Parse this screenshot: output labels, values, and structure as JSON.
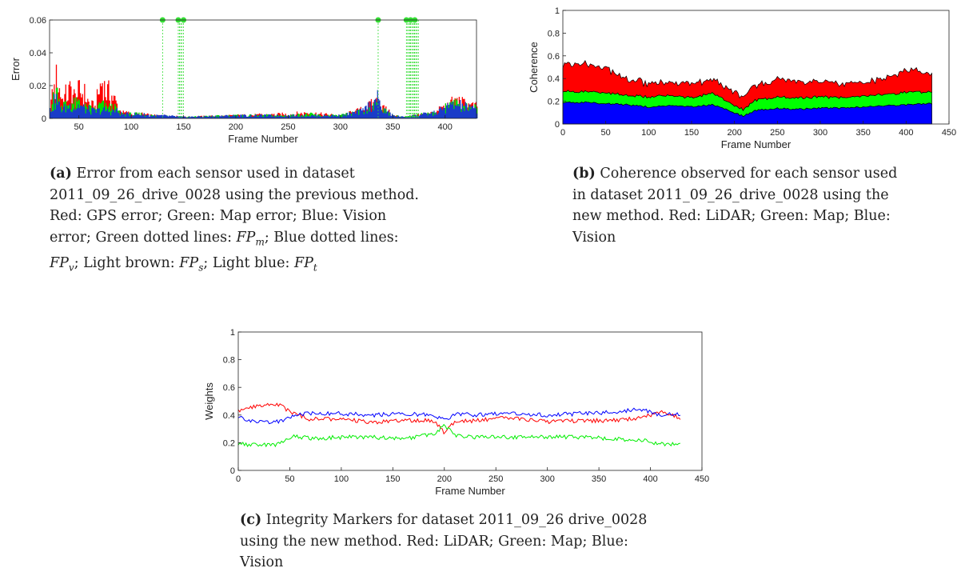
{
  "chart_data": [
    {
      "id": "a",
      "type": "area",
      "xlabel": "Frame Number",
      "ylabel": "Error",
      "xlim": [
        22,
        430
      ],
      "ylim": [
        0,
        0.06
      ],
      "xticks": [
        50,
        100,
        150,
        200,
        250,
        300,
        350,
        400
      ],
      "yticks": [
        0,
        0.02,
        0.04,
        0.06
      ],
      "ytick_labels": [
        "0",
        "0.02",
        "0.04",
        "0.06"
      ],
      "grid": false,
      "series": [
        {
          "color": "#ff0000",
          "x": [
            22,
            26,
            28,
            30,
            34,
            38,
            42,
            46,
            50,
            55,
            60,
            65,
            70,
            72,
            75,
            80,
            85,
            88,
            92,
            96,
            100,
            110,
            120,
            130,
            150,
            200,
            250,
            270,
            280,
            300,
            320,
            335,
            340,
            350,
            360,
            370,
            380,
            390,
            400,
            410,
            420,
            430
          ],
          "values": [
            0.01,
            0.02,
            0.028,
            0.024,
            0.014,
            0.018,
            0.021,
            0.015,
            0.02,
            0.018,
            0.01,
            0.008,
            0.024,
            0.028,
            0.02,
            0.018,
            0.012,
            0.006,
            0.004,
            0.004,
            0.003,
            0.003,
            0.002,
            0.002,
            0.001,
            0.002,
            0.003,
            0.004,
            0.003,
            0.002,
            0.006,
            0.012,
            0.008,
            0.002,
            0.001,
            0.002,
            0.003,
            0.004,
            0.009,
            0.012,
            0.01,
            0.008
          ]
        },
        {
          "color": "#00e000",
          "x": [
            22,
            26,
            28,
            30,
            34,
            38,
            42,
            46,
            50,
            55,
            60,
            65,
            70,
            72,
            75,
            80,
            85,
            88,
            92,
            96,
            100,
            110,
            120,
            130,
            150,
            200,
            250,
            270,
            280,
            300,
            320,
            335,
            340,
            350,
            360,
            370,
            380,
            390,
            400,
            410,
            420,
            430
          ],
          "values": [
            0.008,
            0.016,
            0.022,
            0.014,
            0.01,
            0.01,
            0.012,
            0.01,
            0.012,
            0.008,
            0.007,
            0.006,
            0.01,
            0.01,
            0.008,
            0.008,
            0.007,
            0.004,
            0.003,
            0.003,
            0.003,
            0.003,
            0.002,
            0.002,
            0.001,
            0.002,
            0.002,
            0.003,
            0.002,
            0.002,
            0.005,
            0.01,
            0.006,
            0.002,
            0.001,
            0.002,
            0.003,
            0.004,
            0.008,
            0.01,
            0.009,
            0.007
          ]
        },
        {
          "color": "#1a3cc8",
          "x": [
            22,
            26,
            28,
            30,
            34,
            38,
            42,
            46,
            50,
            55,
            60,
            65,
            70,
            72,
            75,
            80,
            85,
            88,
            92,
            96,
            100,
            110,
            120,
            130,
            150,
            200,
            250,
            270,
            280,
            300,
            320,
            335,
            340,
            350,
            360,
            370,
            380,
            390,
            400,
            410,
            420,
            430
          ],
          "values": [
            0.006,
            0.012,
            0.014,
            0.01,
            0.007,
            0.008,
            0.01,
            0.008,
            0.01,
            0.007,
            0.006,
            0.005,
            0.006,
            0.006,
            0.006,
            0.005,
            0.006,
            0.004,
            0.003,
            0.003,
            0.003,
            0.003,
            0.002,
            0.002,
            0.001,
            0.002,
            0.002,
            0.002,
            0.002,
            0.002,
            0.005,
            0.014,
            0.006,
            0.002,
            0.001,
            0.002,
            0.003,
            0.004,
            0.008,
            0.01,
            0.008,
            0.006
          ]
        }
      ],
      "markers": {
        "color": "#33dd33",
        "x": [
          130,
          145,
          150,
          336,
          363,
          367,
          371
        ],
        "value": 0.06
      }
    },
    {
      "id": "b",
      "type": "area",
      "xlabel": "Frame Number",
      "ylabel": "Coherence",
      "xlim": [
        0,
        450
      ],
      "ylim": [
        0,
        1
      ],
      "xticks": [
        0,
        50,
        100,
        150,
        200,
        250,
        300,
        350,
        400,
        450
      ],
      "yticks": [
        0,
        0.2,
        0.4,
        0.6,
        0.8,
        1
      ],
      "ytick_labels": [
        "0",
        "0.2",
        "0.4",
        "0.6",
        "0.8",
        "1"
      ],
      "grid": false,
      "stacked": true,
      "series": [
        {
          "color": "#0000ff",
          "x": [
            0,
            25,
            50,
            75,
            100,
            125,
            150,
            175,
            200,
            210,
            225,
            250,
            275,
            300,
            325,
            350,
            375,
            400,
            430
          ],
          "values": [
            0.19,
            0.19,
            0.18,
            0.17,
            0.15,
            0.16,
            0.15,
            0.17,
            0.1,
            0.07,
            0.12,
            0.14,
            0.13,
            0.14,
            0.14,
            0.15,
            0.16,
            0.17,
            0.18
          ]
        },
        {
          "color": "#00ff00",
          "x": [
            0,
            25,
            50,
            75,
            100,
            125,
            150,
            175,
            200,
            210,
            225,
            250,
            275,
            300,
            325,
            350,
            375,
            400,
            430
          ],
          "values": [
            0.1,
            0.09,
            0.1,
            0.08,
            0.09,
            0.09,
            0.08,
            0.1,
            0.06,
            0.06,
            0.09,
            0.1,
            0.1,
            0.1,
            0.09,
            0.1,
            0.1,
            0.11,
            0.1
          ]
        },
        {
          "color": "#ff0000",
          "x": [
            0,
            25,
            50,
            75,
            100,
            125,
            150,
            175,
            200,
            210,
            225,
            250,
            275,
            300,
            325,
            350,
            375,
            400,
            430
          ],
          "values": [
            0.23,
            0.25,
            0.22,
            0.14,
            0.12,
            0.11,
            0.12,
            0.12,
            0.12,
            0.11,
            0.13,
            0.15,
            0.14,
            0.13,
            0.12,
            0.12,
            0.14,
            0.2,
            0.16
          ]
        }
      ]
    },
    {
      "id": "c",
      "type": "line",
      "xlabel": "Frame Number",
      "ylabel": "Weights",
      "xlim": [
        0,
        450
      ],
      "ylim": [
        0,
        1
      ],
      "xticks": [
        0,
        50,
        100,
        150,
        200,
        250,
        300,
        350,
        400,
        450
      ],
      "yticks": [
        0,
        0.2,
        0.4,
        0.6,
        0.8,
        1
      ],
      "ytick_labels": [
        "0",
        "0.2",
        "0.4",
        "0.6",
        "0.8",
        "1"
      ],
      "grid": false,
      "series": [
        {
          "color": "#ff0000",
          "x": [
            0,
            20,
            40,
            55,
            70,
            100,
            130,
            160,
            190,
            200,
            210,
            230,
            260,
            300,
            330,
            360,
            390,
            410,
            430
          ],
          "values": [
            0.43,
            0.47,
            0.47,
            0.41,
            0.37,
            0.37,
            0.35,
            0.36,
            0.36,
            0.27,
            0.35,
            0.36,
            0.38,
            0.35,
            0.36,
            0.36,
            0.38,
            0.42,
            0.38
          ]
        },
        {
          "color": "#0000ff",
          "x": [
            0,
            20,
            40,
            55,
            70,
            100,
            130,
            160,
            190,
            200,
            210,
            230,
            260,
            300,
            330,
            360,
            390,
            410,
            430
          ],
          "values": [
            0.38,
            0.35,
            0.35,
            0.4,
            0.41,
            0.41,
            0.4,
            0.41,
            0.4,
            0.36,
            0.41,
            0.4,
            0.41,
            0.4,
            0.41,
            0.42,
            0.44,
            0.4,
            0.41
          ]
        },
        {
          "color": "#00ee00",
          "x": [
            0,
            20,
            40,
            55,
            70,
            100,
            130,
            160,
            190,
            200,
            210,
            230,
            260,
            300,
            330,
            360,
            390,
            410,
            430
          ],
          "values": [
            0.19,
            0.18,
            0.19,
            0.25,
            0.23,
            0.24,
            0.24,
            0.23,
            0.26,
            0.33,
            0.25,
            0.24,
            0.24,
            0.24,
            0.24,
            0.23,
            0.22,
            0.19,
            0.19
          ]
        }
      ]
    }
  ],
  "captions": {
    "a": {
      "tag": "(a)",
      "line1": " Error from each sensor used in dataset",
      "line2": "2011_09_26_drive_0028 using the previous method.",
      "line3": "Red: GPS error; Green: Map error; Blue: Vision",
      "line4_pre": "error; Green dotted lines: ",
      "fpm": "FP",
      "fpm_sub": "m",
      "line4_post": "; Blue dotted lines:",
      "fpv": "FP",
      "fpv_sub": "v",
      "line5_a": "; Light brown: ",
      "fps": "FP",
      "fps_sub": "s",
      "line5_b": "; Light blue: ",
      "fpt": "FP",
      "fpt_sub": "t"
    },
    "b": {
      "tag": "(b)",
      "line1": " Coherence observed for each sensor used",
      "line2": "in dataset 2011_09_26_drive_0028 using the",
      "line3": "new method. Red: LiDAR; Green: Map; Blue:",
      "line4": "Vision"
    },
    "c": {
      "tag": "(c)",
      "line1": " Integrity Markers for dataset 2011_09_26 drive_0028",
      "line2": "using the new method. Red: LiDAR; Green: Map; Blue:",
      "line3": "Vision"
    }
  }
}
